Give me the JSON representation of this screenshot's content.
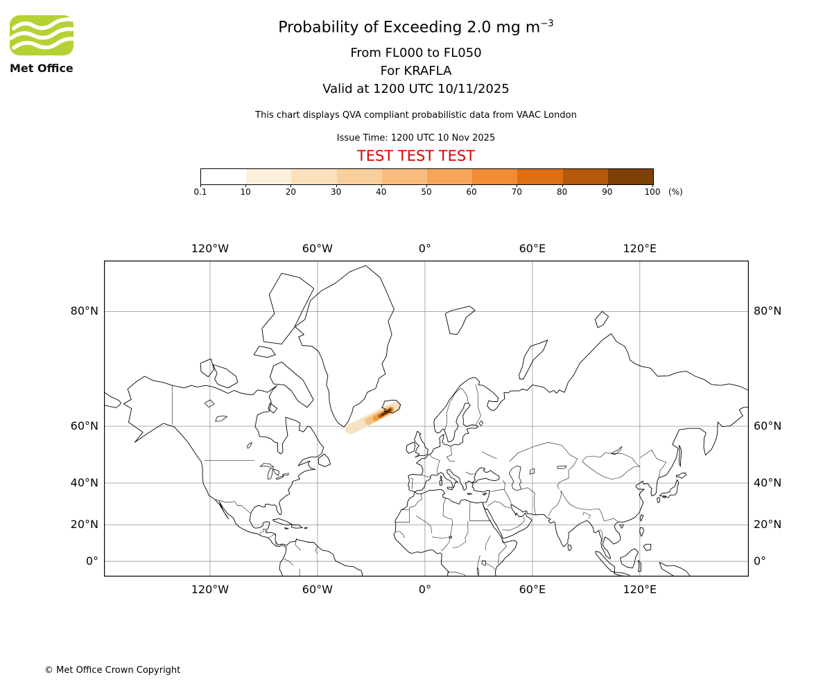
{
  "logo": {
    "brand": "Met Office"
  },
  "header": {
    "title": "Probability of Exceeding 2.0 mg m",
    "title_superscript": "−3",
    "subtitle_lines": [
      "From FL000 to FL050",
      "For KRAFLA",
      "Valid at 1200 UTC 10/11/2025"
    ],
    "note": "This chart displays QVA compliant probabilistic data from VAAC London",
    "issue_time": "Issue Time: 1200 UTC 10 Nov 2025",
    "test_banner": "TEST TEST TEST",
    "test_banner_color": "#dd0000"
  },
  "colorbar": {
    "tick_labels": [
      "0.1",
      "10",
      "20",
      "30",
      "40",
      "50",
      "60",
      "70",
      "80",
      "90",
      "100"
    ],
    "unit": "(%)",
    "colors": [
      "#ffffff",
      "#fcf0dc",
      "#fbe0bb",
      "#fbcf9c",
      "#fabd7d",
      "#f7a559",
      "#f18c35",
      "#dc6f13",
      "#b5590b",
      "#7f4007"
    ]
  },
  "map": {
    "lon_ticks": [
      {
        "label": "120°W",
        "value": -120
      },
      {
        "label": "60°W",
        "value": -60
      },
      {
        "label": "0°",
        "value": 0
      },
      {
        "label": "60°E",
        "value": 60
      },
      {
        "label": "120°E",
        "value": 120
      }
    ],
    "lat_ticks": [
      {
        "label": "80°N",
        "value": 80
      },
      {
        "label": "60°N",
        "value": 60
      },
      {
        "label": "40°N",
        "value": 40
      },
      {
        "label": "20°N",
        "value": 20
      },
      {
        "label": "0°",
        "value": 0
      }
    ]
  },
  "chart_data": {
    "type": "map",
    "title": "Probability of Exceeding 2.0 mg m−3",
    "volcano": "KRAFLA",
    "layer": "FL000 to FL050",
    "valid_time": "1200 UTC 10/11/2025",
    "issue_time": "1200 UTC 10 Nov 2025",
    "probability_scale_percent": [
      0.1,
      10,
      20,
      30,
      40,
      50,
      60,
      70,
      80,
      90,
      100
    ],
    "plume": {
      "description": "Volcanic ash probability plume extending southwest from Iceland toward the southern tip of Greenland; highest probabilities (dark brown) just southwest of Iceland",
      "centerline_lonlat": [
        [
          -41.5,
          59.2
        ],
        [
          -27,
          62.7
        ],
        [
          -17.6,
          64.8
        ]
      ],
      "max_probability_zone_lonlat": [
        -22,
        63.7
      ]
    }
  },
  "footer": {
    "copyright": "© Met Office Crown Copyright"
  }
}
